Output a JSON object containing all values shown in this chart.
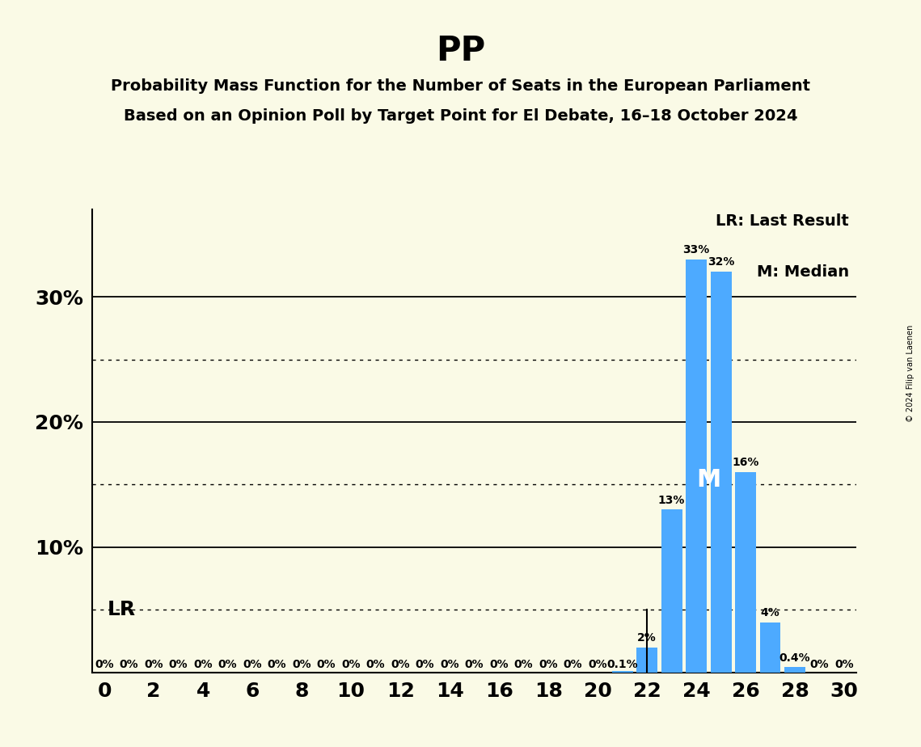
{
  "title": "PP",
  "subtitle1": "Probability Mass Function for the Number of Seats in the European Parliament",
  "subtitle2": "Based on an Opinion Poll by Target Point for El Debate, 16–18 October 2024",
  "background_color": "#FAFAE6",
  "bar_color": "#4DAAFF",
  "seats": [
    0,
    1,
    2,
    3,
    4,
    5,
    6,
    7,
    8,
    9,
    10,
    11,
    12,
    13,
    14,
    15,
    16,
    17,
    18,
    19,
    20,
    21,
    22,
    23,
    24,
    25,
    26,
    27,
    28,
    29,
    30
  ],
  "probabilities": [
    0,
    0,
    0,
    0,
    0,
    0,
    0,
    0,
    0,
    0,
    0,
    0,
    0,
    0,
    0,
    0,
    0,
    0,
    0,
    0,
    0,
    0.001,
    0.02,
    0.13,
    0.33,
    0.32,
    0.16,
    0.04,
    0.004,
    0,
    0
  ],
  "bar_labels": [
    "0%",
    "0%",
    "0%",
    "0%",
    "0%",
    "0%",
    "0%",
    "0%",
    "0%",
    "0%",
    "0%",
    "0%",
    "0%",
    "0%",
    "0%",
    "0%",
    "0%",
    "0%",
    "0%",
    "0%",
    "0%",
    "0.1%",
    "2%",
    "13%",
    "33%",
    "32%",
    "16%",
    "4%",
    "0.4%",
    "0%",
    "0%"
  ],
  "lr_seat": 22,
  "median_seat": 25,
  "lr_label": "LR",
  "median_label": "M",
  "legend_lr": "LR: Last Result",
  "legend_m": "M: Median",
  "ytick_positions": [
    0.1,
    0.2,
    0.3
  ],
  "ytick_labels": [
    "10%",
    "20%",
    "30%"
  ],
  "dotted_yticks": [
    0.05,
    0.15,
    0.25
  ],
  "lr_line_y_max": 0.05,
  "copyright": "© 2024 Filip van Laenen",
  "xlim": [
    -0.5,
    30.5
  ],
  "ylim": [
    0,
    0.37
  ]
}
